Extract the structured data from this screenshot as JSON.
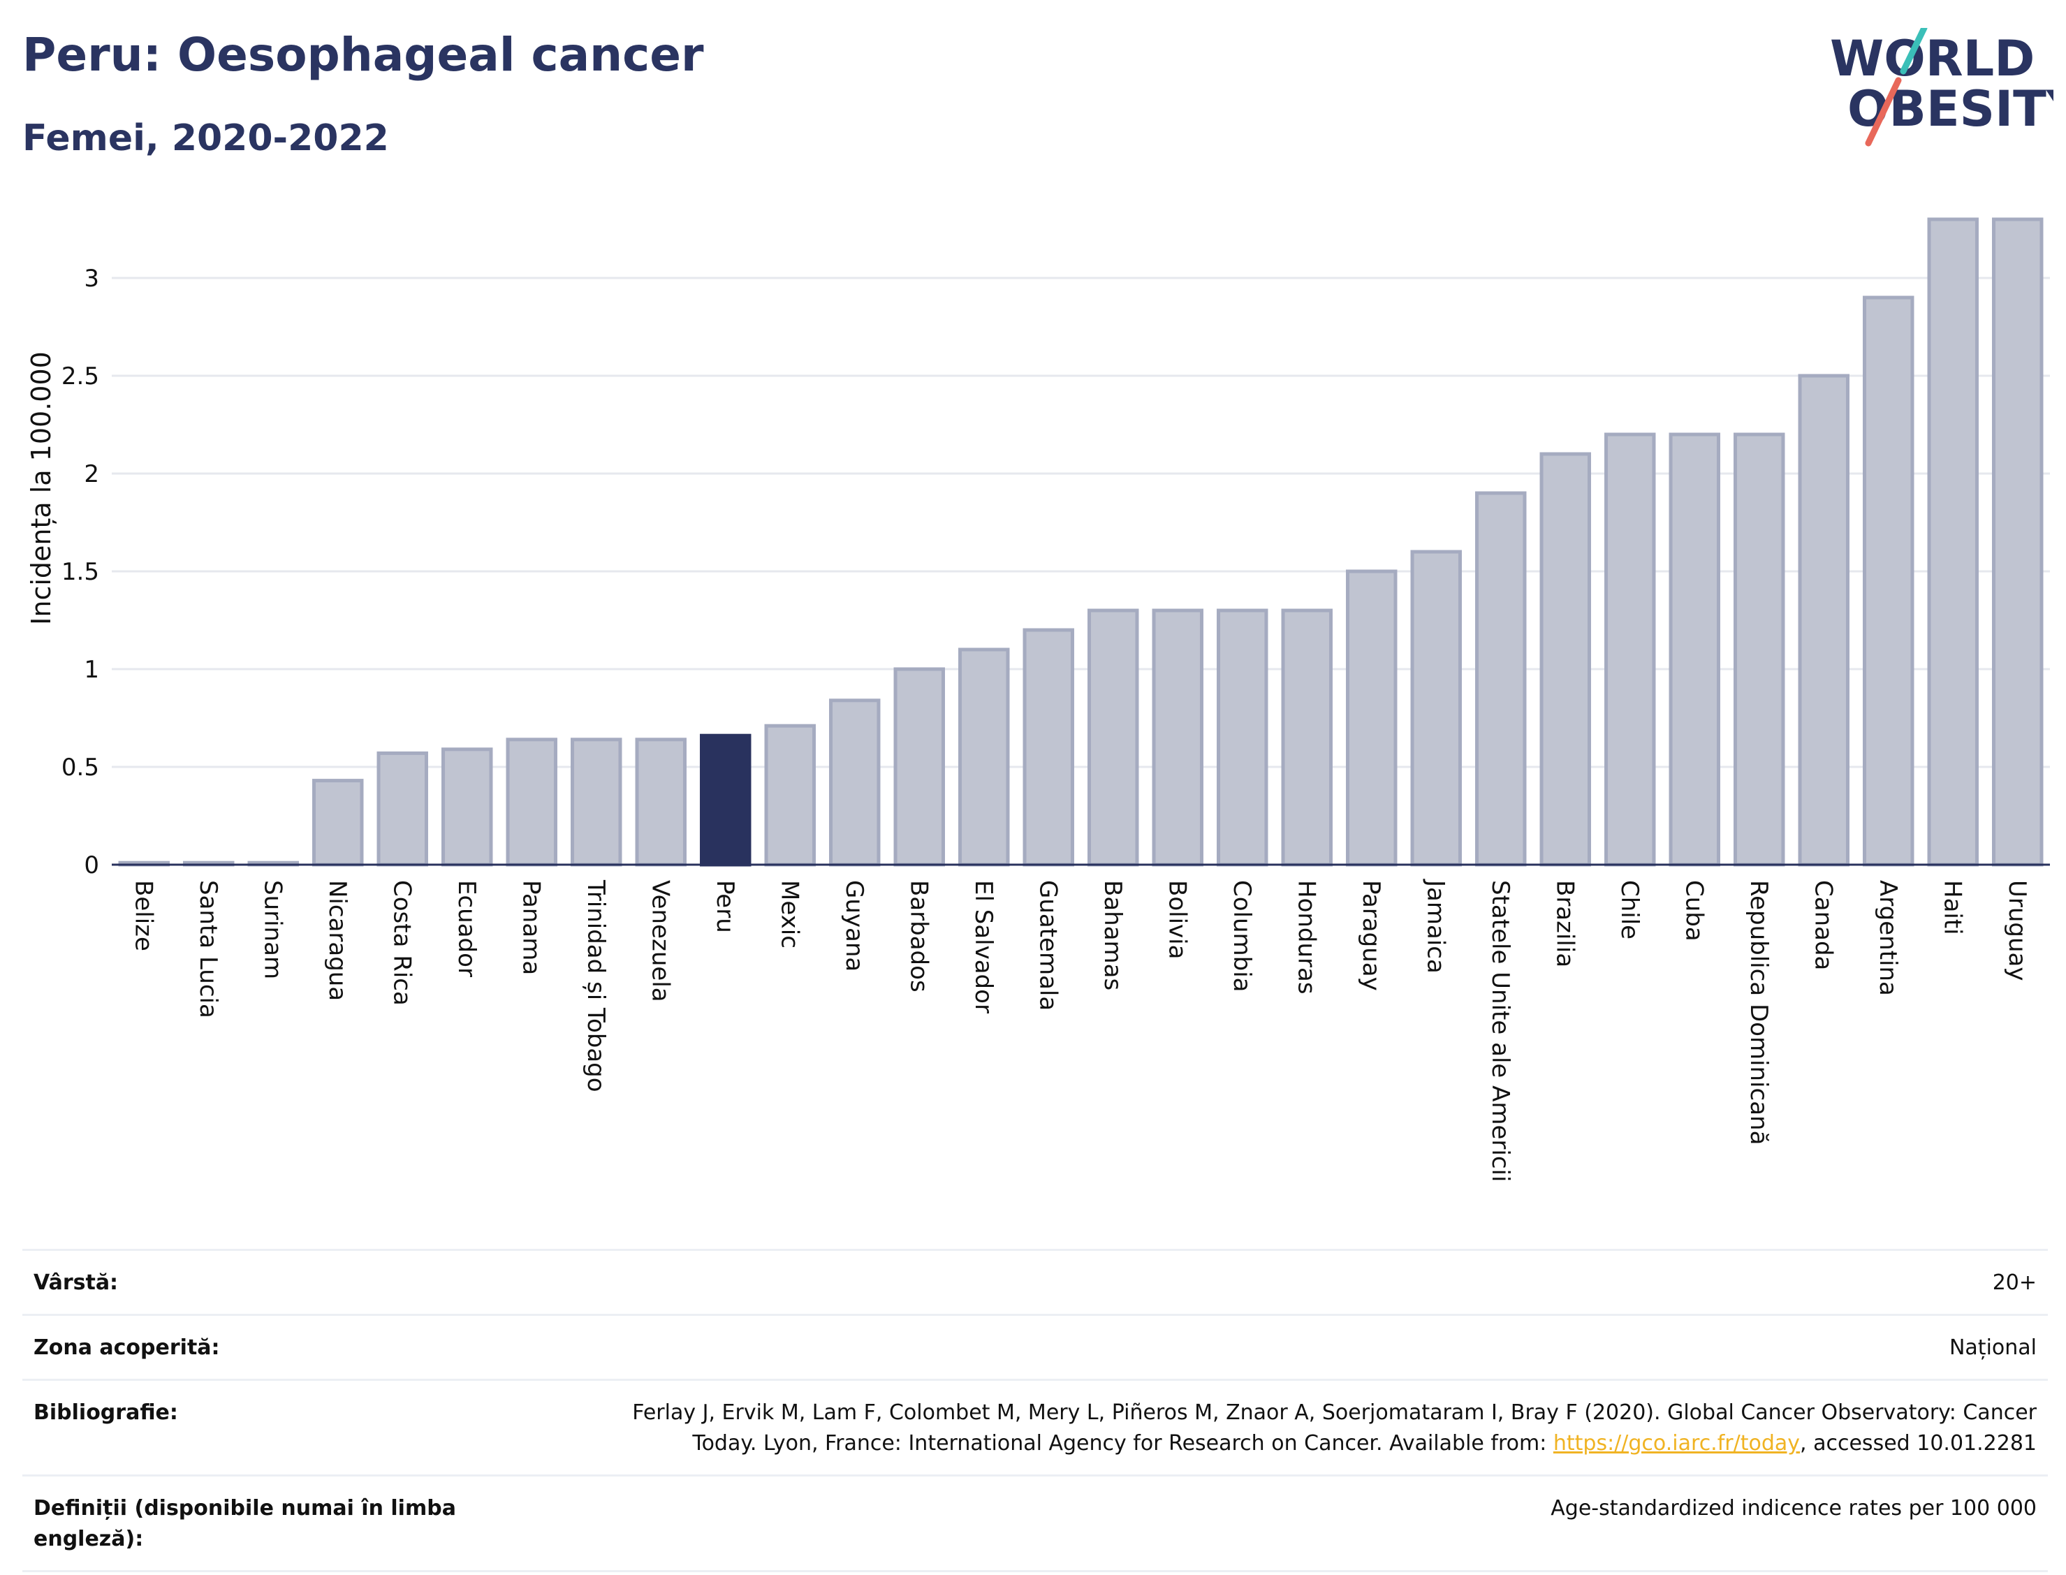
{
  "header": {
    "title": "Peru: Oesophageal cancer",
    "subtitle": "Femei, 2020-2022"
  },
  "logo": {
    "line1": "WORLD",
    "line2": "OBESITY",
    "colors": {
      "text": "#2a3461",
      "slash_top": "#3bbfb8",
      "slash_bottom": "#e8685a"
    }
  },
  "colors": {
    "bar": "#c0c4d1",
    "bar_stroke": "#a5abc0",
    "highlight": "#29325e",
    "grid": "#e6e8ee"
  },
  "chart_data": {
    "type": "bar",
    "title": "Peru: Oesophageal cancer",
    "subtitle": "Femei, 2020-2022",
    "xlabel": "",
    "ylabel": "Incidența la 100.000",
    "ylim": [
      0,
      3.35
    ],
    "yticks": [
      0,
      0.5,
      1,
      1.5,
      2,
      2.5,
      3
    ],
    "ytick_labels": [
      "0",
      "0.5",
      "1",
      "1.5",
      "2",
      "2.5",
      "3"
    ],
    "grid": true,
    "highlight": "Peru",
    "categories": [
      "Belize",
      "Santa Lucia",
      "Surinam",
      "Nicaragua",
      "Costa Rica",
      "Ecuador",
      "Panama",
      "Trinidad și Tobago",
      "Venezuela",
      "Peru",
      "Mexic",
      "Guyana",
      "Barbados",
      "El Salvador",
      "Guatemala",
      "Bahamas",
      "Bolivia",
      "Columbia",
      "Honduras",
      "Paraguay",
      "Jamaica",
      "Statele Unite ale Americii",
      "Brazilia",
      "Chile",
      "Cuba",
      "Republica Dominicană",
      "Canada",
      "Argentina",
      "Haiti",
      "Uruguay"
    ],
    "values": [
      0.01,
      0.01,
      0.01,
      0.43,
      0.57,
      0.59,
      0.64,
      0.64,
      0.64,
      0.66,
      0.71,
      0.84,
      1.0,
      1.1,
      1.2,
      1.3,
      1.3,
      1.3,
      1.3,
      1.5,
      1.6,
      1.9,
      2.1,
      2.2,
      2.2,
      2.2,
      2.5,
      2.9,
      3.3,
      3.3
    ]
  },
  "info": {
    "age_label": "Vârstă:",
    "age_value": "20+",
    "coverage_label": "Zona acoperită:",
    "coverage_value": "Național",
    "biblio_label": "Bibliografie:",
    "biblio_text_1": "Ferlay J, Ervik M, Lam F, Colombet M, Mery L, Piñeros M, Znaor A, Soerjomataram I, Bray F (2020). Global Cancer Observatory: Cancer",
    "biblio_text_2": "Today. Lyon, France: International Agency for Research on Cancer. Available from: ",
    "biblio_link": "https://gco.iarc.fr/today",
    "biblio_text_3": ", accessed 10.01.2281",
    "definitions_label": "Definiții (disponibile numai în limba engleză):",
    "definitions_value": "Age-standardized indicence rates per 100 000"
  }
}
